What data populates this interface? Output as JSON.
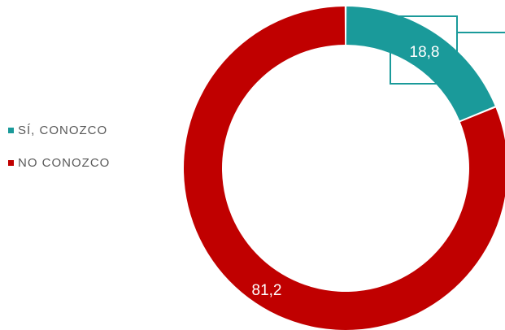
{
  "chart_data": {
    "type": "pie",
    "variant": "doughnut",
    "categories": [
      "SÍ, CONOZCO",
      "NO CONOZCO"
    ],
    "values": [
      18.8,
      81.2
    ],
    "value_labels": [
      "18,8",
      "81,2"
    ],
    "colors": [
      "#1a9a9a",
      "#c00000"
    ],
    "legend_position": "left"
  }
}
